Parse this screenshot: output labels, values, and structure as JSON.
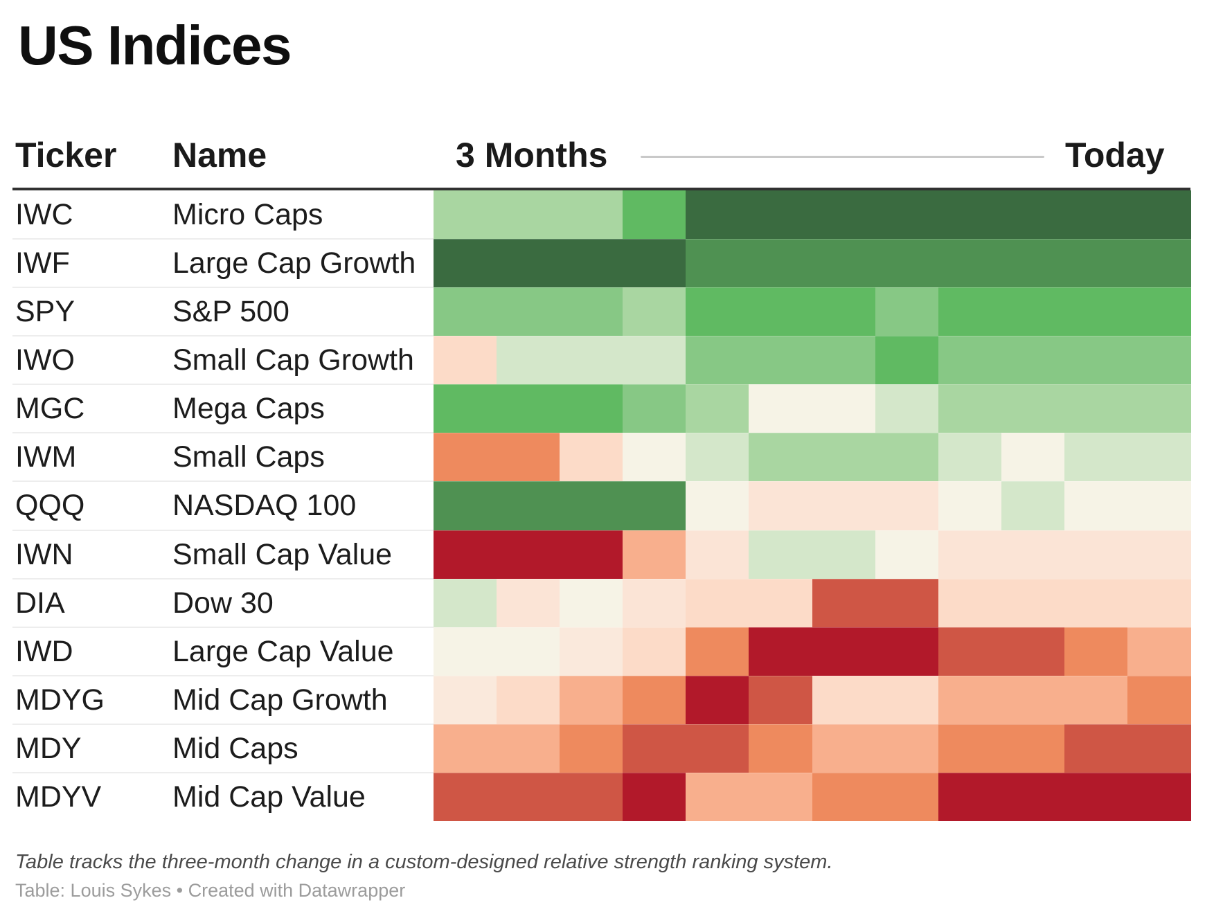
{
  "title": "US Indices",
  "header": {
    "ticker": "Ticker",
    "name": "Name",
    "left_label": "3 Months",
    "right_label": "Today"
  },
  "footnote": "Table tracks the three-month change in a custom-designed relative strength ranking system.",
  "credit": "Table: Louis Sykes • Created with Datawrapper",
  "palette": {
    "dark-green": "#3a6b40",
    "green": "#4f9152",
    "bright-green": "#60ba62",
    "medium-green": "#87c885",
    "light-green": "#a9d6a1",
    "pale-green": "#d4e7ca",
    "cream": "#f6f3e6",
    "faint-peach": "#fae9dc",
    "pale-peach": "#fbe4d6",
    "peach": "#fcdbc8",
    "salmon": "#f8af8d",
    "orange": "#ee8a5e",
    "medium-red": "#cf5645",
    "dark-red": "#b2192a"
  },
  "colors": {
    "title_text": "#0f0f0f",
    "body_text": "#1c1c1c",
    "header_rule": "#313131",
    "header_line": "#c9c9c9",
    "row_divider": "#ededed",
    "footnote_text": "#4a4a4a",
    "credit_text": "#9c9c9c"
  },
  "chart_data": {
    "type": "heatmap",
    "title": "US Indices",
    "x_start_label": "3 Months",
    "x_end_label": "Today",
    "n_time_steps": 12,
    "legend": "ordinal red-to-green relative strength scale (no numeric labels shown)",
    "rows": [
      {
        "ticker": "IWC",
        "name": "Micro Caps",
        "cells": [
          "light-green",
          "light-green",
          "light-green",
          "bright-green",
          "dark-green",
          "dark-green",
          "dark-green",
          "dark-green",
          "dark-green",
          "dark-green",
          "dark-green",
          "dark-green"
        ]
      },
      {
        "ticker": "IWF",
        "name": "Large Cap Growth",
        "cells": [
          "dark-green",
          "dark-green",
          "dark-green",
          "dark-green",
          "green",
          "green",
          "green",
          "green",
          "green",
          "green",
          "green",
          "green"
        ]
      },
      {
        "ticker": "SPY",
        "name": "S&P 500",
        "cells": [
          "medium-green",
          "medium-green",
          "medium-green",
          "light-green",
          "bright-green",
          "bright-green",
          "bright-green",
          "medium-green",
          "bright-green",
          "bright-green",
          "bright-green",
          "bright-green"
        ]
      },
      {
        "ticker": "IWO",
        "name": "Small Cap Growth",
        "cells": [
          "peach",
          "pale-green",
          "pale-green",
          "pale-green",
          "medium-green",
          "medium-green",
          "medium-green",
          "bright-green",
          "medium-green",
          "medium-green",
          "medium-green",
          "medium-green"
        ]
      },
      {
        "ticker": "MGC",
        "name": "Mega Caps",
        "cells": [
          "bright-green",
          "bright-green",
          "bright-green",
          "medium-green",
          "light-green",
          "cream",
          "cream",
          "pale-green",
          "light-green",
          "light-green",
          "light-green",
          "light-green"
        ]
      },
      {
        "ticker": "IWM",
        "name": "Small Caps",
        "cells": [
          "orange",
          "orange",
          "peach",
          "cream",
          "pale-green",
          "light-green",
          "light-green",
          "light-green",
          "pale-green",
          "cream",
          "pale-green",
          "pale-green"
        ]
      },
      {
        "ticker": "QQQ",
        "name": "NASDAQ 100",
        "cells": [
          "green",
          "green",
          "green",
          "green",
          "cream",
          "pale-peach",
          "pale-peach",
          "pale-peach",
          "cream",
          "pale-green",
          "cream",
          "cream"
        ]
      },
      {
        "ticker": "IWN",
        "name": "Small Cap Value",
        "cells": [
          "dark-red",
          "dark-red",
          "dark-red",
          "salmon",
          "pale-peach",
          "pale-green",
          "pale-green",
          "cream",
          "pale-peach",
          "pale-peach",
          "pale-peach",
          "pale-peach"
        ]
      },
      {
        "ticker": "DIA",
        "name": "Dow 30",
        "cells": [
          "pale-green",
          "pale-peach",
          "cream",
          "pale-peach",
          "peach",
          "peach",
          "medium-red",
          "medium-red",
          "peach",
          "peach",
          "peach",
          "peach"
        ]
      },
      {
        "ticker": "IWD",
        "name": "Large Cap Value",
        "cells": [
          "cream",
          "cream",
          "faint-peach",
          "peach",
          "orange",
          "dark-red",
          "dark-red",
          "dark-red",
          "medium-red",
          "medium-red",
          "orange",
          "salmon"
        ]
      },
      {
        "ticker": "MDYG",
        "name": "Mid Cap Growth",
        "cells": [
          "faint-peach",
          "peach",
          "salmon",
          "orange",
          "dark-red",
          "medium-red",
          "peach",
          "peach",
          "salmon",
          "salmon",
          "salmon",
          "orange"
        ]
      },
      {
        "ticker": "MDY",
        "name": "Mid Caps",
        "cells": [
          "salmon",
          "salmon",
          "orange",
          "medium-red",
          "medium-red",
          "orange",
          "salmon",
          "salmon",
          "orange",
          "orange",
          "medium-red",
          "medium-red"
        ]
      },
      {
        "ticker": "MDYV",
        "name": "Mid Cap Value",
        "cells": [
          "medium-red",
          "medium-red",
          "medium-red",
          "dark-red",
          "salmon",
          "salmon",
          "orange",
          "orange",
          "dark-red",
          "dark-red",
          "dark-red",
          "dark-red"
        ]
      }
    ]
  }
}
